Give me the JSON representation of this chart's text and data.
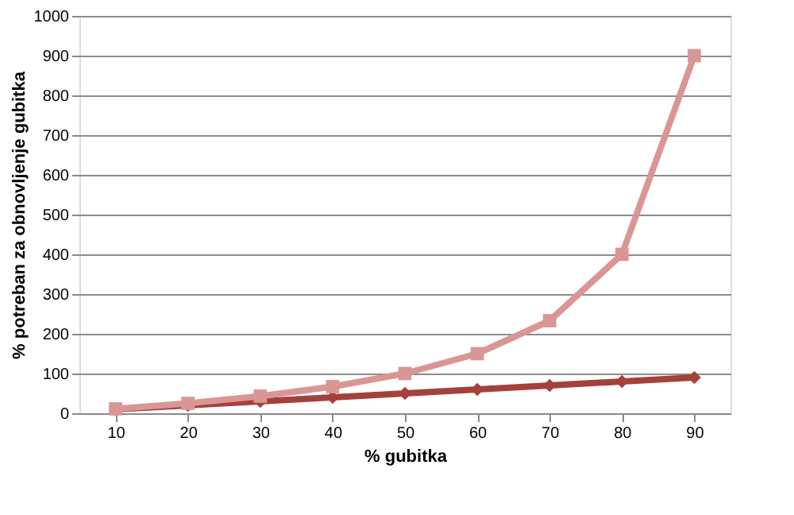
{
  "chart_data": {
    "type": "line",
    "xlabel": "% gubitka",
    "ylabel": "% potreban za obnovljenje gubitka",
    "categories": [
      "10",
      "20",
      "30",
      "40",
      "50",
      "60",
      "70",
      "80",
      "90"
    ],
    "series": [
      {
        "color": "#a5403c",
        "marker": "diamond",
        "values": [
          10,
          20,
          30,
          40,
          50,
          60,
          70,
          80,
          90
        ]
      },
      {
        "color": "#d99694",
        "marker": "square",
        "values": [
          11,
          25,
          43,
          67,
          100,
          150,
          233,
          400,
          900
        ]
      }
    ],
    "ylim": [
      0,
      1000
    ],
    "yticks": [
      0,
      100,
      200,
      300,
      400,
      500,
      600,
      700,
      800,
      900,
      1000
    ],
    "grid": "y",
    "line_style": "solid"
  }
}
